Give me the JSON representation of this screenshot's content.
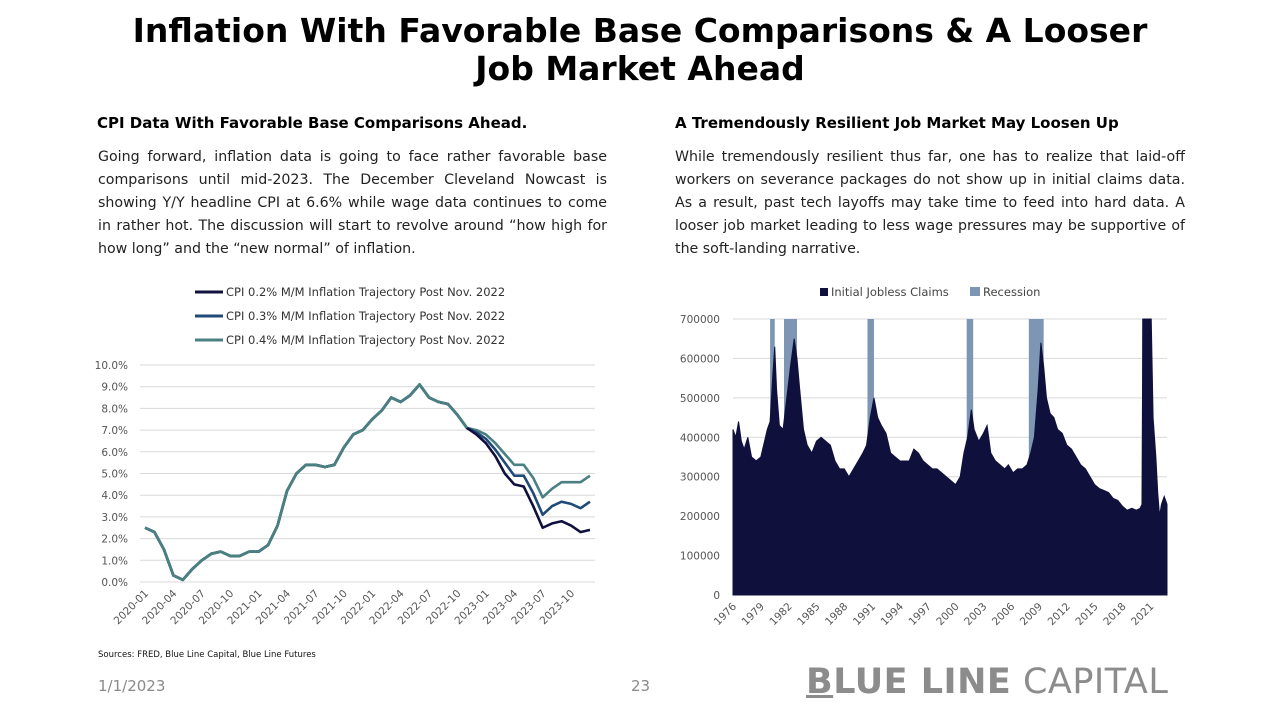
{
  "page": {
    "title": "Inflation With Favorable Base Comparisons & A Looser Job Market Ahead",
    "footer_date": "1/1/2023",
    "page_number": "23",
    "brand_b": "B",
    "brand_rest_bold": "LUE LINE",
    "brand_light": "CAPITAL",
    "sources": "Sources: FRED, Blue Line Capital, Blue Line Futures"
  },
  "left": {
    "heading": "CPI Data With Favorable Base Comparisons Ahead.",
    "paragraph": "Going forward, inflation data is going to face rather favorable base comparisons until mid-2023. The December Cleveland Nowcast is showing Y/Y headline CPI at 6.6% while wage data continues to come in rather hot. The discussion will start to revolve around “how high for how long” and the “new normal” of inflation."
  },
  "right": {
    "heading": "A Tremendously Resilient Job Market May Loosen Up",
    "paragraph": "While tremendously resilient thus far, one has to realize that laid-off workers on severance packages do not show up in initial claims data. As a result, past tech layoffs may take time to feed into hard data. A looser job market leading to less wage pressures may be supportive of the soft-landing narrative."
  },
  "colors": {
    "navy": "#10103d",
    "mid_blue": "#1f4a78",
    "teal": "#4a8082",
    "recession": "#7c96b4",
    "grid": "#d9d9d9"
  },
  "chart_data": [
    {
      "type": "line",
      "title": "",
      "ylabel": "",
      "xlabel": "",
      "ylim": [
        0,
        10
      ],
      "yticks": [
        "0.0%",
        "1.0%",
        "2.0%",
        "3.0%",
        "4.0%",
        "5.0%",
        "6.0%",
        "7.0%",
        "8.0%",
        "9.0%",
        "10.0%"
      ],
      "x_tick_labels": [
        "2020-01",
        "2020-04",
        "2020-07",
        "2020-10",
        "2021-01",
        "2021-04",
        "2021-07",
        "2021-10",
        "2022-01",
        "2022-04",
        "2022-07",
        "2022-10",
        "2023-01",
        "2023-04",
        "2023-07",
        "2023-10"
      ],
      "legend_position": "top",
      "x_start": "2020-01",
      "x_end": "2023-12",
      "history": [
        2.5,
        2.3,
        1.5,
        0.3,
        0.1,
        0.6,
        1.0,
        1.3,
        1.4,
        1.2,
        1.2,
        1.4,
        1.4,
        1.7,
        2.6,
        4.2,
        5.0,
        5.4,
        5.4,
        5.3,
        5.4,
        6.2,
        6.8,
        7.0,
        7.5,
        7.9,
        8.5,
        8.3,
        8.6,
        9.1,
        8.5,
        8.3,
        8.2,
        7.7,
        7.1
      ],
      "series": [
        {
          "name": "CPI 0.2% M/M Inflation Trajectory Post Nov. 2022",
          "color": "#10103d",
          "values": [
            6.8,
            6.4,
            5.8,
            5.0,
            4.5,
            4.4,
            3.5,
            2.5,
            2.7,
            2.8,
            2.6,
            2.3,
            2.4
          ]
        },
        {
          "name": "CPI 0.3% M/M Inflation Trajectory Post Nov. 2022",
          "color": "#1f4a78",
          "values": [
            6.9,
            6.6,
            6.1,
            5.5,
            4.9,
            4.9,
            4.1,
            3.1,
            3.5,
            3.7,
            3.6,
            3.4,
            3.7
          ]
        },
        {
          "name": "CPI 0.4% M/M Inflation Trajectory Post Nov. 2022",
          "color": "#4a8082",
          "values": [
            7.0,
            6.8,
            6.4,
            5.9,
            5.4,
            5.4,
            4.8,
            3.9,
            4.3,
            4.6,
            4.6,
            4.6,
            4.9
          ]
        }
      ]
    },
    {
      "type": "area",
      "title": "",
      "ylabel": "",
      "xlabel": "",
      "ylim": [
        0,
        700000
      ],
      "yticks": [
        "0",
        "100000",
        "200000",
        "300000",
        "400000",
        "500000",
        "600000",
        "700000"
      ],
      "x_tick_labels": [
        "1976",
        "1979",
        "1982",
        "1985",
        "1988",
        "1991",
        "1994",
        "1997",
        "2000",
        "2003",
        "2006",
        "2009",
        "2012",
        "2015",
        "2018",
        "2021"
      ],
      "x_range": [
        1976.0,
        2022.8
      ],
      "legend_position": "top",
      "series": [
        {
          "name": "Initial Jobless Claims",
          "color": "#10103d",
          "points": [
            [
              1976.0,
              420000
            ],
            [
              1976.3,
              400000
            ],
            [
              1976.6,
              440000
            ],
            [
              1976.9,
              390000
            ],
            [
              1977.2,
              370000
            ],
            [
              1977.6,
              400000
            ],
            [
              1978.0,
              350000
            ],
            [
              1978.5,
              340000
            ],
            [
              1979.0,
              350000
            ],
            [
              1979.4,
              390000
            ],
            [
              1979.7,
              420000
            ],
            [
              1980.0,
              440000
            ],
            [
              1980.3,
              560000
            ],
            [
              1980.5,
              630000
            ],
            [
              1980.7,
              520000
            ],
            [
              1981.0,
              430000
            ],
            [
              1981.4,
              420000
            ],
            [
              1981.8,
              500000
            ],
            [
              1982.2,
              580000
            ],
            [
              1982.6,
              650000
            ],
            [
              1982.9,
              600000
            ],
            [
              1983.2,
              520000
            ],
            [
              1983.6,
              420000
            ],
            [
              1984.0,
              380000
            ],
            [
              1984.5,
              360000
            ],
            [
              1985.0,
              390000
            ],
            [
              1985.5,
              400000
            ],
            [
              1986.0,
              390000
            ],
            [
              1986.5,
              380000
            ],
            [
              1987.0,
              340000
            ],
            [
              1987.5,
              320000
            ],
            [
              1988.0,
              320000
            ],
            [
              1988.5,
              300000
            ],
            [
              1989.0,
              320000
            ],
            [
              1989.5,
              340000
            ],
            [
              1990.0,
              360000
            ],
            [
              1990.4,
              380000
            ],
            [
              1990.8,
              450000
            ],
            [
              1991.2,
              500000
            ],
            [
              1991.6,
              450000
            ],
            [
              1992.0,
              430000
            ],
            [
              1992.5,
              410000
            ],
            [
              1993.0,
              360000
            ],
            [
              1993.5,
              350000
            ],
            [
              1994.0,
              340000
            ],
            [
              1994.5,
              340000
            ],
            [
              1995.0,
              340000
            ],
            [
              1995.5,
              370000
            ],
            [
              1996.0,
              360000
            ],
            [
              1996.5,
              340000
            ],
            [
              1997.0,
              330000
            ],
            [
              1997.5,
              320000
            ],
            [
              1998.0,
              320000
            ],
            [
              1998.5,
              310000
            ],
            [
              1999.0,
              300000
            ],
            [
              1999.5,
              290000
            ],
            [
              2000.0,
              280000
            ],
            [
              2000.5,
              300000
            ],
            [
              2000.9,
              360000
            ],
            [
              2001.3,
              400000
            ],
            [
              2001.7,
              470000
            ],
            [
              2002.0,
              420000
            ],
            [
              2002.5,
              390000
            ],
            [
              2003.0,
              410000
            ],
            [
              2003.4,
              430000
            ],
            [
              2003.8,
              360000
            ],
            [
              2004.3,
              340000
            ],
            [
              2004.8,
              330000
            ],
            [
              2005.3,
              320000
            ],
            [
              2005.7,
              330000
            ],
            [
              2006.2,
              310000
            ],
            [
              2006.7,
              320000
            ],
            [
              2007.2,
              320000
            ],
            [
              2007.7,
              330000
            ],
            [
              2008.1,
              360000
            ],
            [
              2008.5,
              400000
            ],
            [
              2008.9,
              520000
            ],
            [
              2009.2,
              640000
            ],
            [
              2009.5,
              580000
            ],
            [
              2009.8,
              500000
            ],
            [
              2010.2,
              460000
            ],
            [
              2010.6,
              450000
            ],
            [
              2011.0,
              420000
            ],
            [
              2011.5,
              410000
            ],
            [
              2012.0,
              380000
            ],
            [
              2012.5,
              370000
            ],
            [
              2013.0,
              350000
            ],
            [
              2013.5,
              330000
            ],
            [
              2014.0,
              320000
            ],
            [
              2014.5,
              300000
            ],
            [
              2015.0,
              280000
            ],
            [
              2015.5,
              270000
            ],
            [
              2016.0,
              265000
            ],
            [
              2016.5,
              260000
            ],
            [
              2017.0,
              245000
            ],
            [
              2017.5,
              240000
            ],
            [
              2018.0,
              225000
            ],
            [
              2018.5,
              215000
            ],
            [
              2019.0,
              220000
            ],
            [
              2019.5,
              215000
            ],
            [
              2019.9,
              220000
            ],
            [
              2020.1,
              230000
            ],
            [
              2020.2,
              700000
            ],
            [
              2020.5,
              700000
            ],
            [
              2020.7,
              700000
            ],
            [
              2020.9,
              700000
            ],
            [
              2021.1,
              700000
            ],
            [
              2021.3,
              450000
            ],
            [
              2021.6,
              350000
            ],
            [
              2021.8,
              260000
            ],
            [
              2022.0,
              200000
            ],
            [
              2022.2,
              230000
            ],
            [
              2022.5,
              250000
            ],
            [
              2022.8,
              230000
            ]
          ]
        },
        {
          "name": "Recession",
          "color": "#7c96b4"
        }
      ],
      "recessions": [
        [
          1980.0,
          1980.5
        ],
        [
          1981.5,
          1982.9
        ],
        [
          1990.5,
          1991.2
        ],
        [
          2001.2,
          2001.9
        ],
        [
          2007.9,
          2009.5
        ],
        [
          2020.1,
          2020.4
        ]
      ]
    }
  ]
}
